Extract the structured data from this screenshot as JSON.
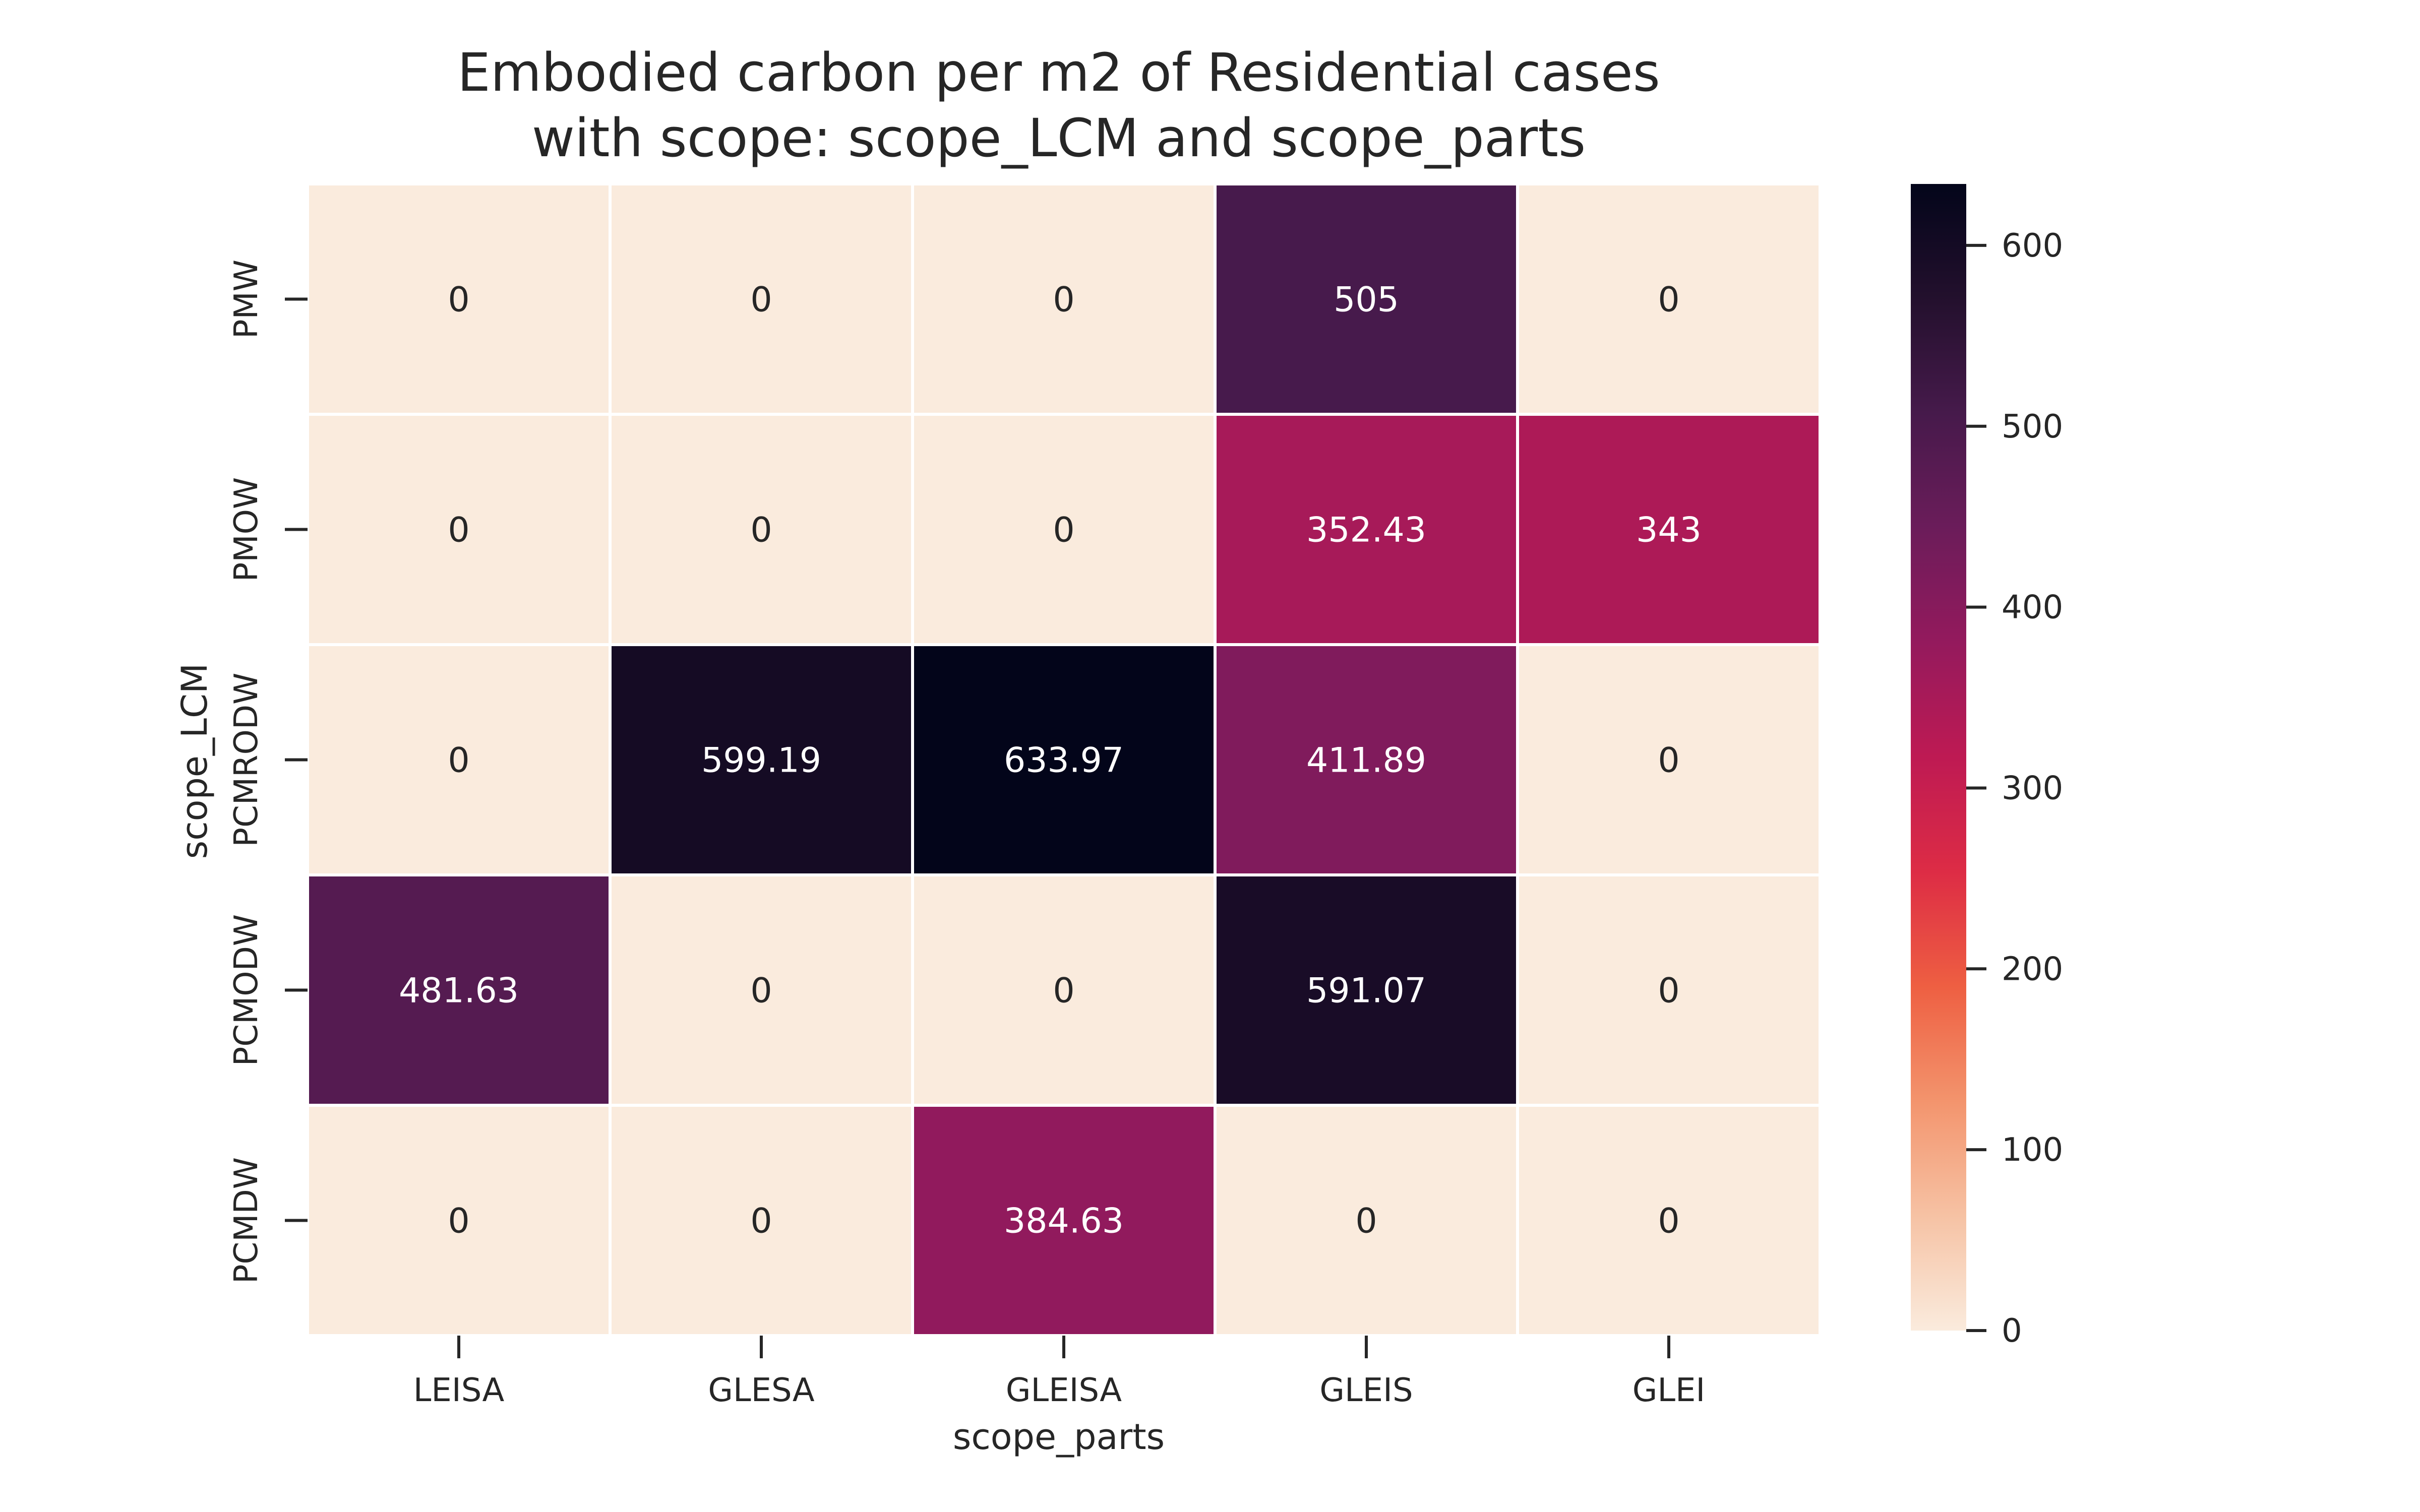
{
  "chart_data": {
    "type": "heatmap",
    "title": [
      "Embodied carbon per m2 of Residential cases",
      "with scope: scope_LCM and scope_parts"
    ],
    "xlabel": "scope_parts",
    "ylabel": "scope_LCM",
    "x_categories": [
      "LEISA",
      "GLESA",
      "GLEISA",
      "GLEIS",
      "GLEI"
    ],
    "y_categories": [
      "PMW",
      "PMOW",
      "PCMRODW",
      "PCMODW",
      "PCMDW"
    ],
    "values": [
      [
        0,
        0,
        0,
        505,
        0
      ],
      [
        0,
        0,
        0,
        352.43,
        343
      ],
      [
        0,
        599.19,
        633.97,
        411.89,
        0
      ],
      [
        481.63,
        0,
        0,
        591.07,
        0
      ],
      [
        0,
        0,
        384.63,
        0,
        0
      ]
    ],
    "value_labels": [
      [
        "0",
        "0",
        "0",
        "505",
        "0"
      ],
      [
        "0",
        "0",
        "0",
        "352.43",
        "343"
      ],
      [
        "0",
        "599.19",
        "633.97",
        "411.89",
        "0"
      ],
      [
        "481.63",
        "0",
        "0",
        "591.07",
        "0"
      ],
      [
        "0",
        "0",
        "384.63",
        "0",
        "0"
      ]
    ],
    "colorbar": {
      "min": 0,
      "max": 633.97,
      "ticks": [
        "0",
        "100",
        "200",
        "300",
        "400",
        "500",
        "600"
      ],
      "colormap": "rocket_r"
    },
    "grid": false
  }
}
